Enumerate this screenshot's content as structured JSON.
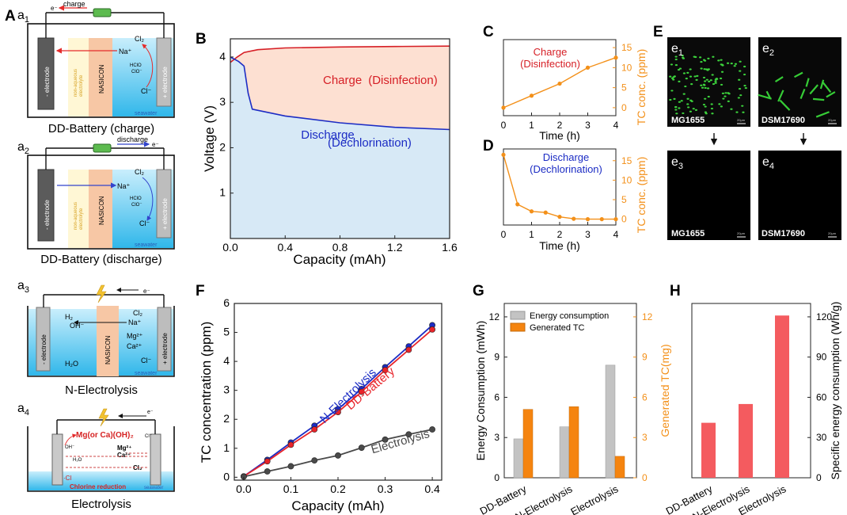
{
  "figure": {
    "panel_labels": {
      "A": "A",
      "B": "B",
      "C": "C",
      "D": "D",
      "E": "E",
      "F": "F",
      "G": "G",
      "H": "H"
    }
  },
  "schematics": {
    "a1": {
      "letter": "a",
      "sub": "1",
      "caption": "DD-Battery (charge)",
      "wire_label": "charge",
      "electron": "e⁻"
    },
    "a2": {
      "letter": "a",
      "sub": "2",
      "caption": "DD-Battery (discharge)",
      "wire_label": "discharge",
      "electron": "e⁻"
    },
    "a3": {
      "letter": "a",
      "sub": "3",
      "caption": "N-Electrolysis",
      "electron": "e⁻"
    },
    "a4": {
      "letter": "a",
      "sub": "4",
      "caption": "Electrolysis",
      "electron": "e⁻"
    },
    "labels": {
      "neg_electrode": "- electrode",
      "pos_electrode": "+ electrode",
      "nonaqueous_1": "non-aqueous",
      "nonaqueous_2": "electrolyte",
      "nasicon": "NASICON",
      "seawater": "seawater",
      "cl2": "Cl₂",
      "h2": "H₂",
      "na": "Na⁺",
      "hclo": "HClO",
      "clo": "ClO⁻",
      "cl": "Cl⁻",
      "oh": "OH⁻",
      "h2o": "H₂O",
      "mg": "Mg²⁺",
      "ca": "Ca²⁺",
      "mgoh": "Mg(or Ca)(OH)₂",
      "chlorine_reduction": "Chlorine reduction",
      "cl_minus": "·Cl"
    }
  },
  "micrographs": {
    "e1": {
      "letter": "e",
      "sub": "1",
      "strain": "MG1655"
    },
    "e2": {
      "letter": "e",
      "sub": "2",
      "strain": "DSM17690"
    },
    "e3": {
      "letter": "e",
      "sub": "3",
      "strain": "MG1655"
    },
    "e4": {
      "letter": "e",
      "sub": "4",
      "strain": "DSM17690"
    },
    "scale": "20μm"
  },
  "chart_data": [
    {
      "id": "B",
      "type": "area",
      "xlabel": "Capacity (mAh)",
      "ylabel": "Voltage (V)",
      "xlim": [
        0,
        1.6
      ],
      "ylim": [
        0,
        4.4
      ],
      "xticks": [
        "0.0",
        "0.4",
        "0.8",
        "1.2",
        "1.6"
      ],
      "yticks": [
        "1",
        "2",
        "3",
        "4"
      ],
      "series": [
        {
          "name": "Charge",
          "label_a": "Charge",
          "label_b": "(Disinfection)",
          "color": "#d61f26",
          "x": [
            0,
            0.05,
            0.1,
            0.2,
            0.4,
            0.8,
            1.2,
            1.6
          ],
          "y": [
            3.88,
            4.0,
            4.1,
            4.16,
            4.2,
            4.22,
            4.23,
            4.24
          ]
        },
        {
          "name": "Discharge",
          "label_a": "Discharge",
          "label_b": "(Dechlorination)",
          "color": "#1c2cc4",
          "x": [
            0,
            0.06,
            0.1,
            0.13,
            0.16,
            0.4,
            0.8,
            1.2,
            1.6
          ],
          "y": [
            4.0,
            3.9,
            3.8,
            3.2,
            2.85,
            2.7,
            2.55,
            2.45,
            2.4
          ]
        }
      ]
    },
    {
      "id": "C",
      "type": "line",
      "xlabel": "Time (h)",
      "ylabel": "TC conc. (ppm)",
      "annotation": [
        "Charge",
        "(Disinfection)"
      ],
      "xlim": [
        0,
        4
      ],
      "ylim": [
        -2,
        17
      ],
      "xticks": [
        "0",
        "1",
        "2",
        "3",
        "4"
      ],
      "yticks": [
        "0",
        "5",
        "10",
        "15"
      ],
      "x": [
        0,
        1,
        2,
        3,
        4
      ],
      "values": [
        0,
        3,
        6,
        10,
        12.5
      ]
    },
    {
      "id": "D",
      "type": "line",
      "xlabel": "Time (h)",
      "ylabel": "TC conc. (ppm)",
      "annotation": [
        "Discharge",
        "(Dechlorination)"
      ],
      "xlim": [
        0,
        4
      ],
      "ylim": [
        -1.5,
        18
      ],
      "xticks": [
        "0",
        "1",
        "2",
        "3",
        "4"
      ],
      "yticks": [
        "0",
        "5",
        "10",
        "15"
      ],
      "x": [
        0,
        0.5,
        1,
        1.5,
        2,
        2.5,
        3,
        3.5,
        4
      ],
      "values": [
        16.5,
        3.8,
        2.0,
        1.7,
        0.6,
        0.1,
        0,
        0,
        0
      ]
    },
    {
      "id": "F",
      "type": "line",
      "xlabel": "Capacity (mAh)",
      "ylabel": "TC concentration (ppm)",
      "xlim": [
        -0.02,
        0.42
      ],
      "ylim": [
        -0.1,
        6
      ],
      "xticks": [
        "0.0",
        "0.1",
        "0.2",
        "0.3",
        "0.4"
      ],
      "yticks": [
        "0",
        "1",
        "2",
        "3",
        "4",
        "5",
        "6"
      ],
      "x": [
        0,
        0.05,
        0.1,
        0.15,
        0.2,
        0.25,
        0.3,
        0.35,
        0.4
      ],
      "series": [
        {
          "name": "N-Electrolysis",
          "color": "#1c2cc4",
          "values": [
            0.03,
            0.6,
            1.2,
            1.78,
            2.35,
            3.05,
            3.8,
            4.52,
            5.25
          ]
        },
        {
          "name": "DD-Battery",
          "color": "#e8242a",
          "values": [
            0.03,
            0.55,
            1.12,
            1.65,
            2.25,
            2.95,
            3.7,
            4.4,
            5.1
          ]
        },
        {
          "name": "Electrolysis",
          "color": "#4a4a4a",
          "values": [
            0.02,
            0.2,
            0.38,
            0.58,
            0.75,
            1.02,
            1.3,
            1.48,
            1.65
          ]
        }
      ]
    },
    {
      "id": "G",
      "type": "bar",
      "categories": [
        "DD-Battery",
        "N-Electrolysis",
        "Electrolysis"
      ],
      "ylabel": "Energy Consumption (mWh)",
      "y2label": "Generated TC(mg)",
      "ylim": [
        0,
        13
      ],
      "y2lim": [
        0,
        13
      ],
      "yticks": [
        "0",
        "3",
        "6",
        "9",
        "12"
      ],
      "y2ticks": [
        "0",
        "3",
        "6",
        "9",
        "12"
      ],
      "series": [
        {
          "name": "Energy consumption",
          "color": "#c3c3c3",
          "values": [
            2.9,
            3.8,
            8.4
          ]
        },
        {
          "name": "Generated TC",
          "color": "#f5840f",
          "values": [
            5.1,
            5.3,
            1.6
          ]
        }
      ]
    },
    {
      "id": "H",
      "type": "bar",
      "categories": [
        "DD-Battery",
        "N-Electrolysis",
        "Electrolysis"
      ],
      "ylabel": "Specific energy consumption (Wh/g)",
      "ylim": [
        0,
        130
      ],
      "yticks": [
        "0",
        "30",
        "60",
        "90",
        "120"
      ],
      "series": [
        {
          "name": "Specific energy consumption",
          "color": "#f45b5f",
          "values": [
            41,
            55,
            121
          ]
        }
      ]
    }
  ]
}
